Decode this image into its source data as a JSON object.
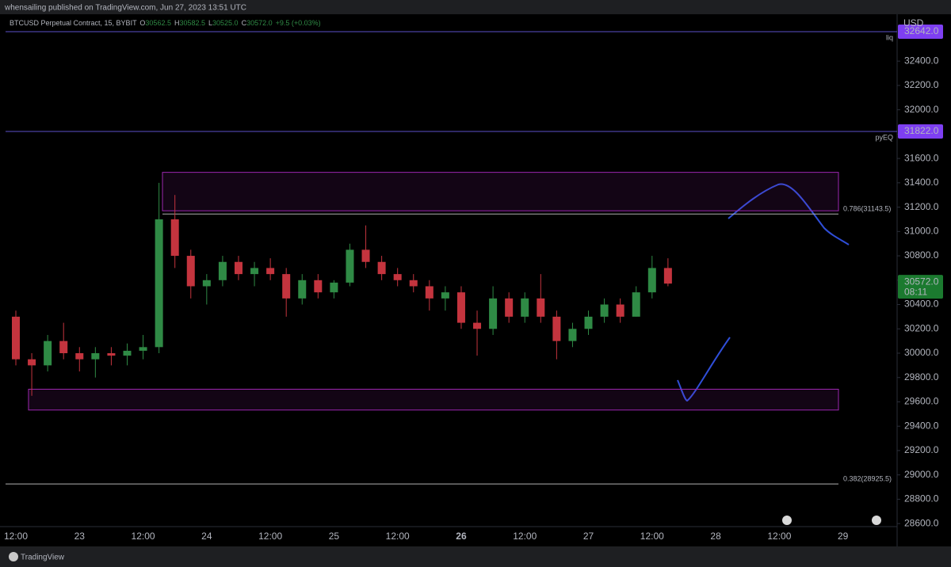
{
  "header": {
    "publisher": "whensailing published on TradingView.com, Jun 27, 2023 13:51 UTC",
    "symbol": "BTCUSD Perpetual Contract, 15, BYBIT",
    "ohlc": [
      {
        "key": "O",
        "text": "30562.5"
      },
      {
        "key": "H",
        "text": "30582.5"
      },
      {
        "key": "L",
        "text": "30525.0"
      },
      {
        "key": "C",
        "text": "30572.0"
      }
    ],
    "change": "+9.5 (+0.03%)"
  },
  "footer": {
    "brand": "TradingView"
  },
  "chart_data": {
    "type": "candlestick",
    "currency": "USD",
    "categories": [
      "12:00",
      null,
      null,
      null,
      "23",
      null,
      null,
      null,
      "12:00",
      null,
      null,
      null,
      "24",
      null,
      null,
      null,
      "12:00",
      null,
      null,
      null,
      "25",
      null,
      null,
      null,
      "12:00",
      null,
      null,
      null,
      "26",
      null,
      null,
      null,
      "12:00",
      null,
      null,
      null,
      "27",
      null,
      null,
      null,
      "12:00",
      null,
      null,
      null,
      "28",
      null,
      null,
      null,
      "12:00",
      null,
      null,
      null,
      "29",
      null,
      null,
      null
    ],
    "bold_category": "26",
    "open": [
      30300,
      29950,
      29900,
      30100,
      30000,
      29950,
      30000,
      29980,
      30020,
      30050,
      31100,
      30800,
      30550,
      30600,
      30750,
      30650,
      30700,
      30650,
      30450,
      30600,
      30500,
      30580,
      30850,
      30750,
      30650,
      30600,
      30550,
      30450,
      30500,
      30250,
      30200,
      30450,
      30300,
      30450,
      30300,
      30100,
      30200,
      30300,
      30400,
      30300,
      30500,
      30700,
      null,
      null,
      null,
      null,
      null,
      null,
      null,
      null,
      null,
      null,
      null,
      null,
      null,
      null
    ],
    "high": [
      30350,
      30000,
      30150,
      30250,
      30050,
      30050,
      30050,
      30080,
      30150,
      31400,
      31300,
      30850,
      30650,
      30800,
      30800,
      30750,
      30780,
      30700,
      30650,
      30650,
      30600,
      30900,
      31050,
      30800,
      30700,
      30650,
      30600,
      30550,
      30550,
      30350,
      30550,
      30500,
      30500,
      30650,
      30350,
      30250,
      30350,
      30450,
      30450,
      30550,
      30800,
      30780,
      null,
      null,
      null,
      null,
      null,
      null,
      null,
      null,
      null,
      null,
      null,
      null,
      null,
      null
    ],
    "low": [
      29900,
      29650,
      29850,
      29950,
      29850,
      29800,
      29900,
      29900,
      29950,
      30000,
      30700,
      30450,
      30400,
      30550,
      30600,
      30550,
      30600,
      30300,
      30400,
      30450,
      30450,
      30550,
      30700,
      30600,
      30550,
      30500,
      30350,
      30350,
      30200,
      29980,
      30150,
      30250,
      30250,
      30250,
      29950,
      30050,
      30150,
      30250,
      30250,
      30300,
      30450,
      30550,
      null,
      null,
      null,
      null,
      null,
      null,
      null,
      null,
      null,
      null,
      null,
      null,
      null,
      null
    ],
    "close": [
      29950,
      29900,
      30100,
      30000,
      29950,
      30000,
      29980,
      30020,
      30050,
      31100,
      30800,
      30550,
      30600,
      30750,
      30650,
      30700,
      30650,
      30450,
      30600,
      30500,
      30580,
      30850,
      30750,
      30650,
      30600,
      30550,
      30450,
      30500,
      30250,
      30200,
      30450,
      30300,
      30450,
      30300,
      30100,
      30200,
      30300,
      30400,
      30300,
      30500,
      30700,
      30572,
      null,
      null,
      null,
      null,
      null,
      null,
      null,
      null,
      null,
      null,
      null,
      null,
      null,
      null
    ],
    "up_color": "#2f8a45",
    "down_color": "#c4343e",
    "ylim": [
      28575,
      32785
    ],
    "yticks": [
      {
        "value": 28600,
        "label": "28600.0"
      },
      {
        "value": 28800,
        "label": "28800.0"
      },
      {
        "value": 29000,
        "label": "29000.0"
      },
      {
        "value": 29200,
        "label": "29200.0"
      },
      {
        "value": 29400,
        "label": "29400.0"
      },
      {
        "value": 29600,
        "label": "29600.0"
      },
      {
        "value": 29800,
        "label": "29800.0"
      },
      {
        "value": 30000,
        "label": "30000.0"
      },
      {
        "value": 30200,
        "label": "30200.0"
      },
      {
        "value": 30400,
        "label": "30400.0"
      },
      {
        "value": 30600,
        "label": "30600.0"
      },
      {
        "value": 30800,
        "label": "30800.0"
      },
      {
        "value": 31000,
        "label": "31000.0"
      },
      {
        "value": 31200,
        "label": "31200.0"
      },
      {
        "value": 31400,
        "label": "31400.0"
      },
      {
        "value": 31600,
        "label": "31600.0"
      },
      {
        "value": 31800,
        "label": "31800.0"
      },
      {
        "value": 32000,
        "label": "32000.0"
      },
      {
        "value": 32200,
        "label": "32200.0"
      },
      {
        "value": 32400,
        "label": "32400.0"
      }
    ],
    "levels": [
      {
        "name": "liq",
        "value": 32642,
        "label": "32642.0"
      },
      {
        "name": "pyEQ",
        "value": 31822,
        "label": "31822.0"
      }
    ],
    "fib_levels": [
      {
        "value": 31143.5,
        "label": "0.786(31143.5)"
      },
      {
        "value": 28925.5,
        "label": "0.382(28925.5)"
      }
    ],
    "zones": [
      {
        "top": 31486,
        "bottom": 31170
      },
      {
        "top": 29704,
        "bottom": 29533
      }
    ],
    "last_price": {
      "value": 30572,
      "label": "30572.0",
      "countdown": "08:11"
    }
  }
}
